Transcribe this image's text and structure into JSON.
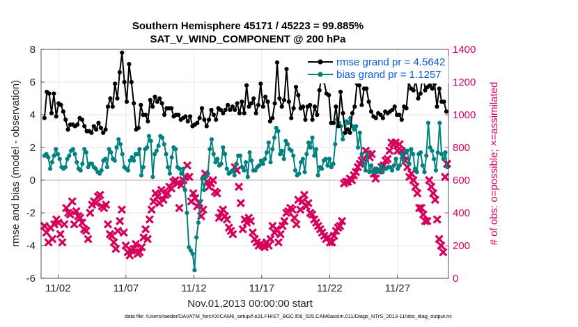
{
  "chart_data": {
    "type": "line",
    "title": "Southern Hemisphere 45171 / 45223 = 99.885%",
    "subtitle": "SAT_V_WIND_COMPONENT @ 200 hPa",
    "xlabel": "Nov.01,2013 00:00:00 start",
    "ylabel": "rmse and bias (model - observation)",
    "ylabel_right": "# of obs: o=possible; ×=assimilated",
    "footer": "data file: /Users/raeder/DAI/ATM_forcXX/CAM6_setup/f.e21.FHIST_BGC.f09_025.CAM6assim.011/Diags_NTrS_2013-11/obs_diag_output.nc",
    "x_ticks": [
      "11/02",
      "11/07",
      "11/12",
      "11/17",
      "11/22",
      "11/27"
    ],
    "x_tick_days": [
      2,
      7,
      12,
      17,
      22,
      27
    ],
    "xlim": [
      0.75,
      30.75
    ],
    "ylim": [
      -6,
      8
    ],
    "y_ticks": [
      "-6",
      "-4",
      "-2",
      "0",
      "2",
      "4",
      "6",
      "8"
    ],
    "ylim_right": [
      0,
      1400
    ],
    "y_ticks_right": [
      "0",
      "200",
      "400",
      "600",
      "800",
      "1000",
      "1200",
      "1400"
    ],
    "grid": true,
    "legend_placement": "top-right",
    "x_spacing_days": 0.25,
    "x_start_day": 1.0,
    "series": [
      {
        "name": "rmse grand pr = 4.5642",
        "color": "#000000",
        "axis": "left",
        "values": [
          3.8,
          5.4,
          5.3,
          4.1,
          5.3,
          3.9,
          4.7,
          4.6,
          4.2,
          3.7,
          3.1,
          3.4,
          3.4,
          3.3,
          3.4,
          3.8,
          3.7,
          3.3,
          3.0,
          3.0,
          2.9,
          3.3,
          3.1,
          3.5,
          3.2,
          2.9,
          3.1,
          4.5,
          5.0,
          4.5,
          5.9,
          5.0,
          6.6,
          7.8,
          6.0,
          4.8,
          7.1,
          6.0,
          4.7,
          3.1,
          3.2,
          4.6,
          4.0,
          4.0,
          3.6,
          4.9,
          4.5,
          5.1,
          4.8,
          5.0,
          4.7,
          4.0,
          4.4,
          4.4,
          4.4,
          3.9,
          4.0,
          4.0,
          3.7,
          3.8,
          3.9,
          3.6,
          3.9,
          3.3,
          3.4,
          3.5,
          3.8,
          4.4,
          3.7,
          3.3,
          3.7,
          4.3,
          4.0,
          3.7,
          4.4,
          4.3,
          4.1,
          4.3,
          4.6,
          4.3,
          4.5,
          4.3,
          4.7,
          4.1,
          4.8,
          4.1,
          5.8,
          4.5,
          4.7,
          5.0,
          4.1,
          4.6,
          5.9,
          4.5,
          5.1,
          4.8,
          3.6,
          3.8,
          4.7,
          7.2,
          5.0,
          4.5,
          4.9,
          6.8,
          4.8,
          3.8,
          4.4,
          5.7,
          5.2,
          4.4,
          4.5,
          3.7,
          4.5,
          4.6,
          3.7,
          4.5,
          4.0,
          5.5,
          6.5,
          6.0,
          5.3,
          5.2,
          3.5,
          3.5,
          4.5,
          3.3,
          5.4,
          4.1,
          2.9,
          3.1,
          2.9,
          4.1,
          4.5,
          5.9,
          5.8,
          4.6,
          5.6,
          5.6,
          4.8,
          4.2,
          3.9,
          3.8,
          4.1,
          4.0,
          3.8,
          4.2,
          4.1,
          4.2,
          4.3,
          4.5,
          4.0,
          4.0,
          3.7,
          4.5,
          4.4,
          6.0,
          5.6,
          5.5,
          6.1,
          5.0,
          5.3,
          6.6,
          5.5,
          5.7,
          5.8,
          5.6,
          5.9,
          4.5,
          5.6,
          4.8,
          4.8,
          4.2,
          3.8,
          3.9
        ]
      },
      {
        "name": "bias grand pr = 1.1257",
        "color": "#00807f",
        "axis": "left",
        "values": [
          1.5,
          1.6,
          1.4,
          0.7,
          1.1,
          1.5,
          1.9,
          1.6,
          1.3,
          0.8,
          0.7,
          0.8,
          1.3,
          1.5,
          1.8,
          1.9,
          1.6,
          1.1,
          0.7,
          0.6,
          1.0,
          1.9,
          1.7,
          0.8,
          1.0,
          1.0,
          0.8,
          0.7,
          0.5,
          0.4,
          0.6,
          1.2,
          1.3,
          0.8,
          1.9,
          1.7,
          1.3,
          1.2,
          2.0,
          2.5,
          2.2,
          1.6,
          0.8,
          0.7,
          0.6,
          1.2,
          1.4,
          1.2,
          1.6,
          1.6,
          1.9,
          0.3,
          0.8,
          1.9,
          2.0,
          2.7,
          2.4,
          0.2,
          1.6,
          1.8,
          2.1,
          2.7,
          2.6,
          2.2,
          1.6,
          0.8,
          0.4,
          1.4,
          2.0,
          1.9,
          0.8,
          0.7,
          0.4,
          0.7,
          -0.6,
          -2.0,
          -4.1,
          -4.3,
          -4.5,
          -5.5,
          -3.5,
          -2.6,
          -1.3,
          0.1,
          -0.6,
          0.2,
          0.4,
          1.9,
          2.5,
          1.6,
          1.1,
          1.3,
          0.9,
          1.0,
          2.0,
          1.6,
          0.7,
          0.4,
          0.5,
          0.6,
          0.3,
          1.0,
          1.5,
          1.5,
          0.8,
          0.6,
          1.1,
          0.2,
          1.7,
          1.2,
          0.6,
          0.6,
          0.8,
          0.9,
          1.2,
          1.0,
          1.3,
          1.7,
          2.3,
          1.1,
          1.9,
          2.6,
          3.2,
          3.0,
          1.6,
          1.8,
          1.3,
          2.4,
          2.2,
          1.9,
          1.8,
          1.5,
          0.6,
          0.3,
          0.4,
          1.1,
          1.3,
          0.5,
          1.6,
          2.3,
          2.0,
          2.6,
          1.5,
          1.9,
          0.3,
          0.8,
          0.7,
          1.2,
          1.3,
          0.9,
          1.3,
          0.8,
          1.0,
          2.2,
          3.7,
          3.5,
          3.3,
          2.5,
          2.9,
          3.6,
          3.5,
          3.8,
          3.3,
          3.1,
          3.3,
          2.0,
          2.9,
          1.6,
          1.0,
          0.6,
          1.6,
          0.5,
          0.9,
          0.5,
          0.7,
          0.5,
          0.6,
          0.9,
          0.5,
          0.7,
          0.7,
          0.8,
          0.8,
          0.6,
          0.9,
          1.3,
          0.7,
          0.9,
          1.6,
          1.2,
          1.8,
          1.8,
          1.0,
          1.9,
          1.6,
          0.7,
          0.5,
          1.6,
          1.7,
          0.9,
          0.5,
          1.5,
          3.5,
          2.0,
          1.8,
          1.3,
          0.6,
          1.7,
          3.5,
          1.6,
          1.3,
          1.7,
          0.8,
          -0.3,
          0.3
        ]
      },
      {
        "name": "assimilated obs count",
        "color": "#d6005c",
        "axis": "right",
        "values": [
          320,
          280,
          220,
          310,
          240,
          330,
          360,
          340,
          270,
          220,
          330,
          430,
          400,
          390,
          470,
          330,
          410,
          380,
          370,
          340,
          300,
          290,
          240,
          400,
          450,
          470,
          460,
          500,
          510,
          440,
          430,
          450,
          330,
          270,
          260,
          220,
          180,
          290,
          350,
          420,
          280,
          200,
          160,
          140,
          170,
          180,
          210,
          150,
          160,
          190,
          250,
          300,
          240,
          360,
          420,
          470,
          520,
          500,
          460,
          540,
          480,
          510,
          520,
          560,
          550,
          590,
          600,
          580,
          430,
          570,
          600,
          620,
          690,
          620,
          470,
          520,
          490,
          440,
          460,
          380,
          420,
          640,
          590,
          560,
          580,
          600,
          530,
          520,
          370,
          400,
          420,
          380,
          360,
          310,
          290,
          270,
          680,
          660,
          560,
          460,
          300,
          360,
          340,
          370,
          350,
          280,
          240,
          220,
          200,
          210,
          200,
          190,
          220,
          200,
          240,
          320,
          280,
          300,
          220,
          270,
          320,
          350,
          400,
          410,
          430,
          420,
          370,
          330,
          480,
          420,
          470,
          510,
          440,
          460,
          400,
          390,
          360,
          340,
          320,
          300,
          280,
          260,
          240,
          250,
          220,
          220,
          260,
          290,
          310,
          320,
          350,
          580,
          590,
          590,
          610,
          600,
          630,
          650,
          680,
          700,
          720,
          730,
          780,
          760,
          740,
          760,
          640,
          610,
          660,
          660,
          680,
          690,
          720,
          730,
          780,
          830,
          820,
          830,
          780,
          820,
          780,
          750,
          720,
          680,
          620,
          640,
          600,
          560,
          520,
          430,
          430,
          390,
          350,
          350,
          600,
          560,
          520,
          480,
          360,
          240,
          200,
          160,
          620,
          700,
          730,
          600
        ]
      }
    ]
  }
}
